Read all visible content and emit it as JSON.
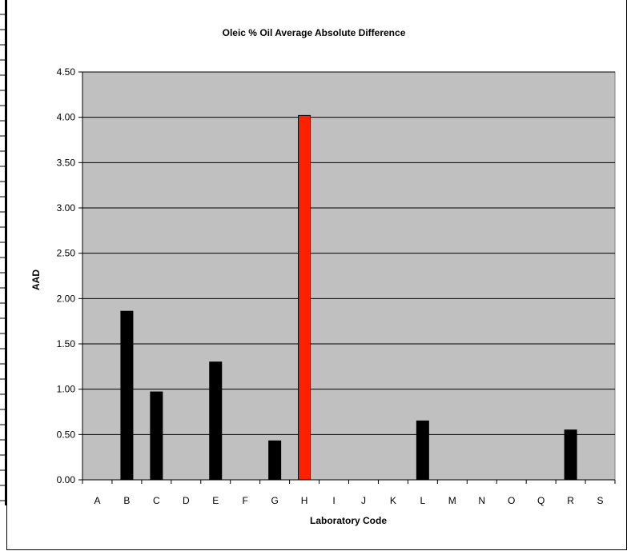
{
  "chart_data": {
    "type": "bar",
    "title": "Oleic % Oil Average Absolute Difference",
    "xlabel": "Laboratory Code",
    "ylabel": "AAD",
    "categories": [
      "A",
      "B",
      "C",
      "D",
      "E",
      "F",
      "G",
      "H",
      "I",
      "J",
      "K",
      "L",
      "M",
      "N",
      "O",
      "Q",
      "R",
      "S"
    ],
    "series": [
      {
        "values": [
          0,
          1.86,
          0.97,
          0,
          1.3,
          0,
          0.43,
          4.02,
          0,
          0,
          0,
          0.65,
          0,
          0,
          0,
          0,
          0.55,
          0
        ]
      }
    ],
    "highlight_category": "H",
    "ylim": [
      0,
      4.5
    ],
    "yticks": [
      "0.00",
      "0.50",
      "1.00",
      "1.50",
      "2.00",
      "2.50",
      "3.00",
      "3.50",
      "4.00",
      "4.50"
    ],
    "grid": true,
    "colors": {
      "plot_background": "#c0c0c0",
      "bar": "#000000",
      "highlight_bar": "#ff2000",
      "gridline": "#000000"
    }
  }
}
